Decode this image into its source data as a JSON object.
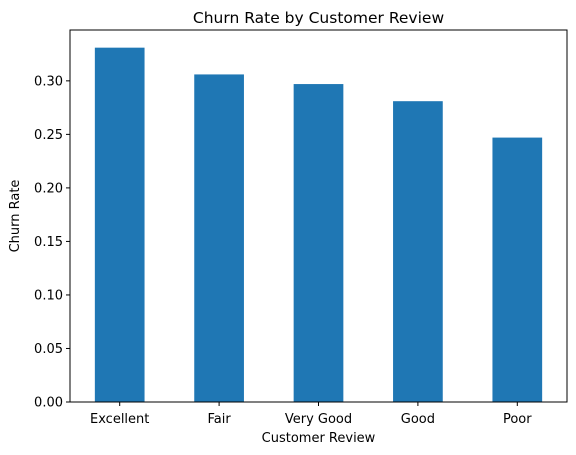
{
  "chart_data": {
    "type": "bar",
    "title": "Churn Rate by Customer Review",
    "xlabel": "Customer Review",
    "ylabel": "Churn Rate",
    "categories": [
      "Excellent",
      "Fair",
      "Very Good",
      "Good",
      "Poor"
    ],
    "values": [
      0.331,
      0.306,
      0.297,
      0.281,
      0.247
    ],
    "ylim": [
      0,
      0.3475
    ],
    "yticks": [
      0.0,
      0.05,
      0.1,
      0.15,
      0.2,
      0.25,
      0.3
    ],
    "ytick_labels": [
      "0.00",
      "0.05",
      "0.10",
      "0.15",
      "0.20",
      "0.25",
      "0.30"
    ],
    "bar_color": "#1f77b4",
    "grid": false,
    "legend": "none"
  }
}
